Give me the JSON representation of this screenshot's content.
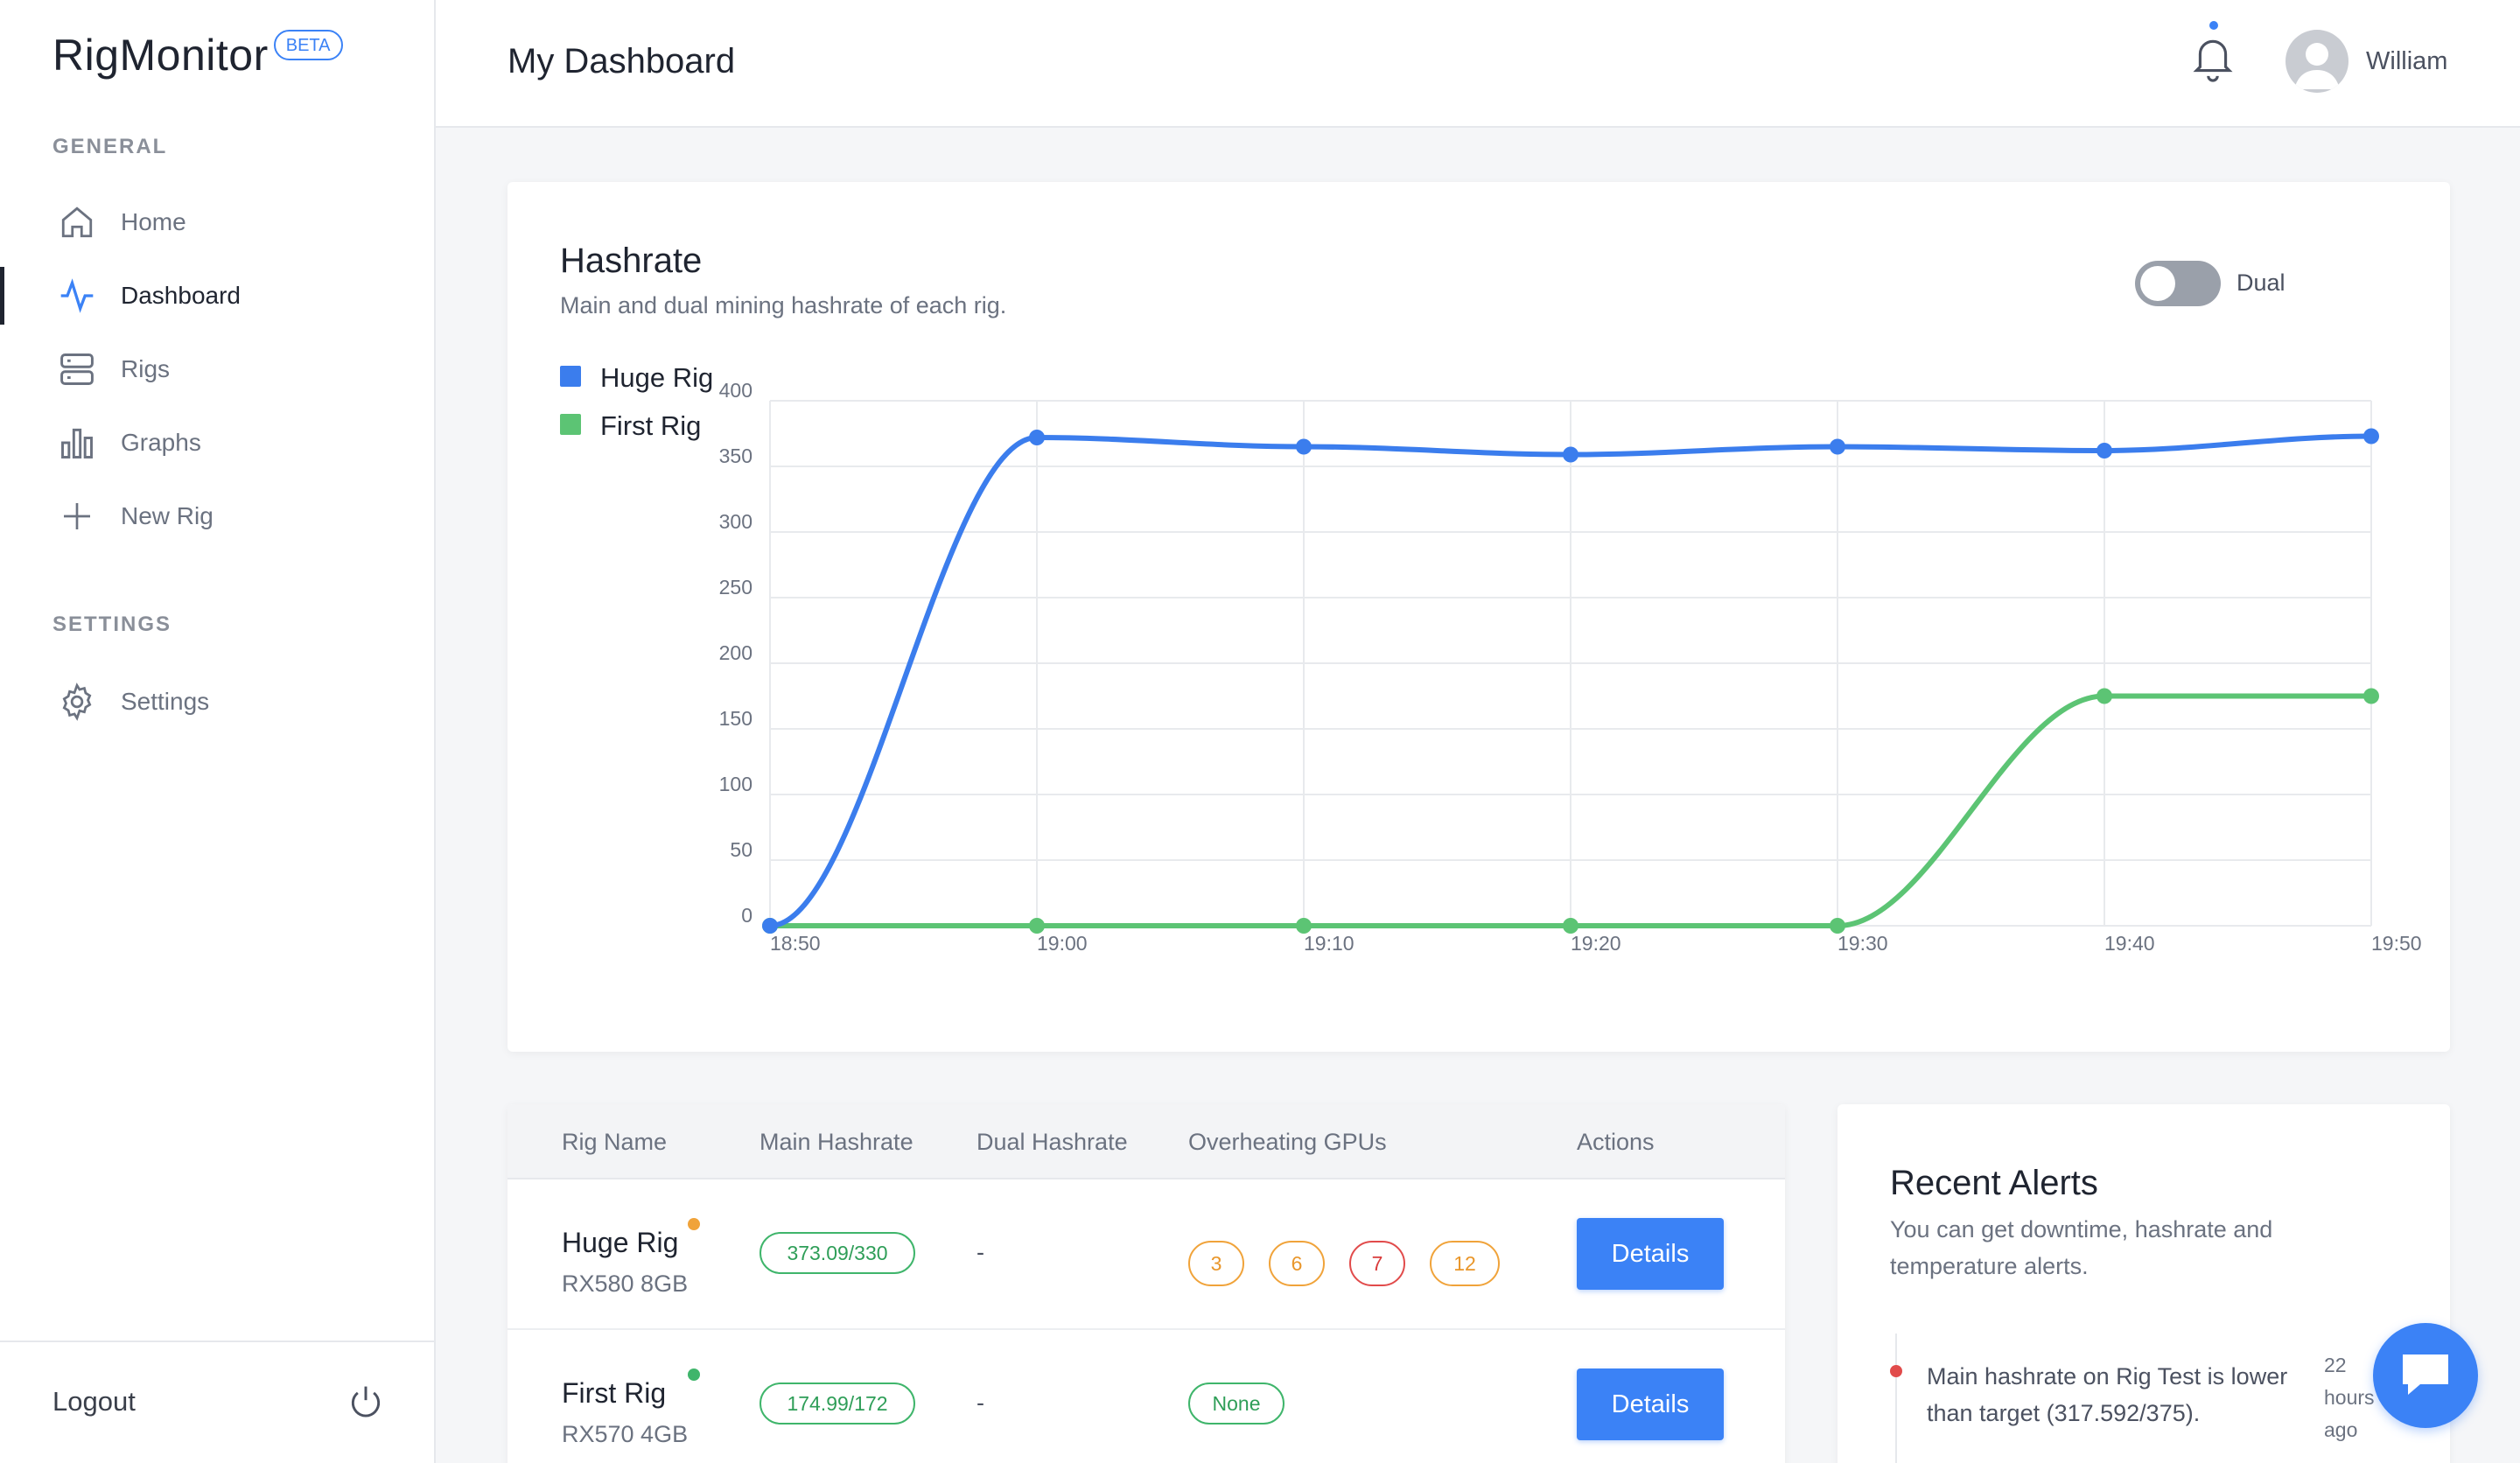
{
  "app": {
    "name": "RigMonitor",
    "badge": "BETA"
  },
  "sidebar": {
    "general_label": "GENERAL",
    "items": [
      {
        "label": "Home",
        "icon": "home-icon"
      },
      {
        "label": "Dashboard",
        "icon": "activity-icon",
        "active": true
      },
      {
        "label": "Rigs",
        "icon": "server-icon"
      },
      {
        "label": "Graphs",
        "icon": "bar-chart-icon"
      },
      {
        "label": "New Rig",
        "icon": "plus-icon"
      }
    ],
    "settings_label": "SETTINGS",
    "settings_item": {
      "label": "Settings",
      "icon": "gear-icon"
    },
    "logout_label": "Logout"
  },
  "header": {
    "title": "My Dashboard",
    "username": "William"
  },
  "hashrate_card": {
    "title": "Hashrate",
    "subtitle": "Main and dual mining hashrate of each rig.",
    "toggle_label": "Dual",
    "toggle_on": false
  },
  "chart_data": {
    "type": "line",
    "x": [
      "18:50",
      "19:00",
      "19:10",
      "19:20",
      "19:30",
      "19:40",
      "19:50"
    ],
    "series": [
      {
        "name": "Huge Rig",
        "color": "#3b7ded",
        "values": [
          0,
          372,
          365,
          359,
          365,
          362,
          373
        ]
      },
      {
        "name": "First Rig",
        "color": "#5cc474",
        "values": [
          0,
          0,
          0,
          0,
          0,
          175,
          175
        ]
      }
    ],
    "yticks": [
      0,
      50,
      100,
      150,
      200,
      250,
      300,
      350,
      400
    ],
    "ylim": [
      0,
      400
    ],
    "grid": true,
    "legend": "top-left"
  },
  "table": {
    "headers": [
      "Rig Name",
      "Main Hashrate",
      "Dual Hashrate",
      "Overheating GPUs",
      "Actions"
    ],
    "rows": [
      {
        "name": "Huge Rig",
        "gpu": "RX580 8GB",
        "status_color": "#f0a33a",
        "main": "373.09/330",
        "dual": "-",
        "gpus": [
          "3",
          "6",
          "7",
          "12"
        ],
        "action": "Details"
      },
      {
        "name": "First Rig",
        "gpu": "RX570 4GB",
        "status_color": "#3fb56b",
        "main": "174.99/172",
        "dual": "-",
        "gpus_none": "None",
        "action": "Details"
      }
    ]
  },
  "alerts": {
    "title": "Recent Alerts",
    "subtitle": "You can get downtime, hashrate and temperature alerts.",
    "items": [
      {
        "text": "Main hashrate on Rig Test is lower than target (317.592/375).",
        "time": "22 hours ago"
      }
    ]
  }
}
